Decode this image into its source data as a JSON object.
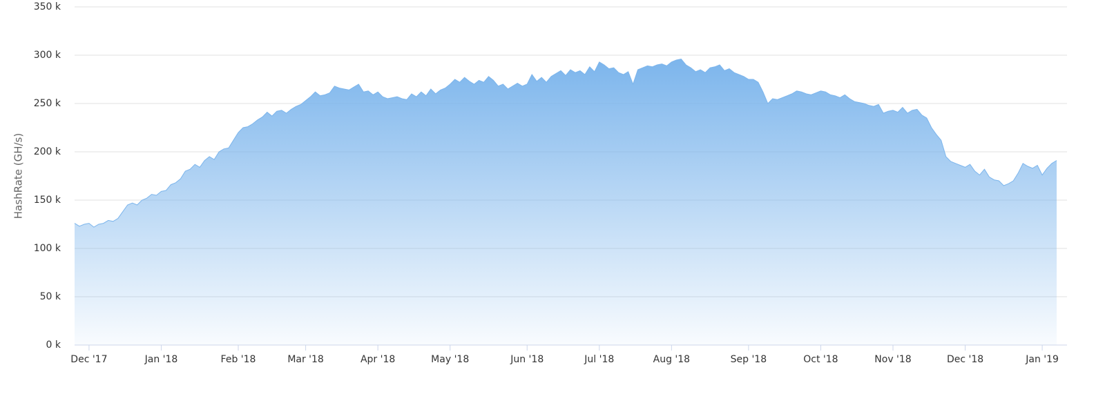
{
  "chart_data": {
    "type": "area",
    "y_axis_label": "HashRate (GH/s)",
    "color": "#7cb5ec",
    "grid": true,
    "ylim": [
      0,
      350000
    ],
    "yticks": [
      {
        "value": 0,
        "label": "0 k"
      },
      {
        "value": 50000,
        "label": "50 k"
      },
      {
        "value": 100000,
        "label": "100 k"
      },
      {
        "value": 150000,
        "label": "150 k"
      },
      {
        "value": 200000,
        "label": "200 k"
      },
      {
        "value": 250000,
        "label": "250 k"
      },
      {
        "value": 300000,
        "label": "300 k"
      },
      {
        "value": 350000,
        "label": "350 k"
      }
    ],
    "categories": [
      null,
      null,
      null,
      "Dec '17",
      null,
      null,
      null,
      null,
      null,
      null,
      null,
      null,
      null,
      null,
      null,
      null,
      null,
      null,
      "Jan '18",
      null,
      null,
      null,
      null,
      null,
      null,
      null,
      null,
      null,
      null,
      null,
      null,
      null,
      null,
      null,
      "Feb '18",
      null,
      null,
      null,
      null,
      null,
      null,
      null,
      null,
      null,
      null,
      null,
      null,
      null,
      "Mar '18",
      null,
      null,
      null,
      null,
      null,
      null,
      null,
      null,
      null,
      null,
      null,
      null,
      null,
      null,
      "Apr '18",
      null,
      null,
      null,
      null,
      null,
      null,
      null,
      null,
      null,
      null,
      null,
      null,
      null,
      null,
      "May '18",
      null,
      null,
      null,
      null,
      null,
      null,
      null,
      null,
      null,
      null,
      null,
      null,
      null,
      null,
      null,
      "Jun '18",
      null,
      null,
      null,
      null,
      null,
      null,
      null,
      null,
      null,
      null,
      null,
      null,
      null,
      null,
      "Jul '18",
      null,
      null,
      null,
      null,
      null,
      null,
      null,
      null,
      null,
      null,
      null,
      null,
      null,
      null,
      "Aug '18",
      null,
      null,
      null,
      null,
      null,
      null,
      null,
      null,
      null,
      null,
      null,
      null,
      null,
      null,
      null,
      "Sep '18",
      null,
      null,
      null,
      null,
      null,
      null,
      null,
      null,
      null,
      null,
      null,
      null,
      null,
      null,
      "Oct '18",
      null,
      null,
      null,
      null,
      null,
      null,
      null,
      null,
      null,
      null,
      null,
      null,
      null,
      null,
      "Nov '18",
      null,
      null,
      null,
      null,
      null,
      null,
      null,
      null,
      null,
      null,
      null,
      null,
      null,
      null,
      "Dec '18",
      null,
      null,
      null,
      null,
      null,
      null,
      null,
      null,
      null,
      null,
      null,
      null,
      null,
      null,
      null,
      "Jan '19",
      null,
      null,
      null
    ],
    "values": [
      126000,
      123000,
      125000,
      126000,
      122000,
      125000,
      126000,
      129000,
      128000,
      131000,
      138000,
      145000,
      147000,
      145000,
      150000,
      152000,
      156000,
      155000,
      159000,
      160000,
      166000,
      168000,
      172000,
      180000,
      182000,
      187000,
      184000,
      191000,
      195000,
      192000,
      200000,
      203000,
      204000,
      212000,
      220000,
      225000,
      226000,
      229000,
      233000,
      236000,
      241000,
      237000,
      242000,
      243000,
      240000,
      244000,
      247000,
      249000,
      253000,
      257000,
      262000,
      258000,
      259000,
      261000,
      268000,
      266000,
      265000,
      264000,
      267000,
      270000,
      262000,
      263000,
      259000,
      262000,
      257000,
      255000,
      256000,
      257000,
      255000,
      254000,
      260000,
      257000,
      262000,
      258000,
      265000,
      260000,
      264000,
      266000,
      270000,
      275000,
      272000,
      277000,
      273000,
      270000,
      274000,
      272000,
      278000,
      274000,
      268000,
      270000,
      265000,
      268000,
      271000,
      268000,
      270000,
      280000,
      273000,
      277000,
      272000,
      278000,
      281000,
      284000,
      279000,
      285000,
      282000,
      284000,
      280000,
      288000,
      283000,
      293000,
      290000,
      286000,
      287000,
      282000,
      280000,
      283000,
      270000,
      285000,
      287000,
      289000,
      288000,
      290000,
      291000,
      289000,
      293000,
      295000,
      296000,
      290000,
      287000,
      283000,
      285000,
      282000,
      287000,
      288000,
      290000,
      284000,
      286000,
      282000,
      280000,
      278000,
      275000,
      275000,
      272000,
      262000,
      250000,
      255000,
      254000,
      256000,
      258000,
      260000,
      263000,
      262000,
      260000,
      259000,
      261000,
      263000,
      262000,
      259000,
      258000,
      256000,
      259000,
      255000,
      252000,
      251000,
      250000,
      248000,
      247000,
      249000,
      240000,
      242000,
      243000,
      241000,
      246000,
      240000,
      243000,
      244000,
      238000,
      235000,
      225000,
      218000,
      212000,
      195000,
      190000,
      188000,
      186000,
      184000,
      187000,
      180000,
      176000,
      182000,
      174000,
      171000,
      170000,
      165000,
      167000,
      170000,
      178000,
      188000,
      185000,
      183000,
      186000,
      176000,
      183000,
      188000,
      191000
    ]
  }
}
